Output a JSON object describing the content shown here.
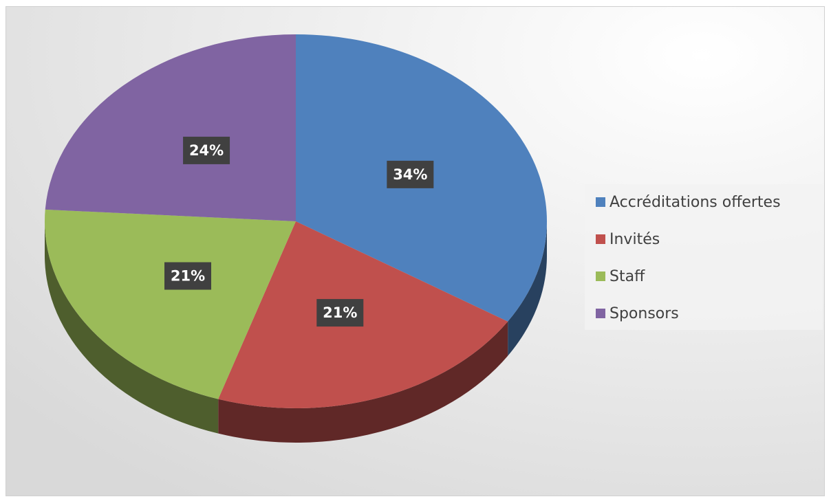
{
  "chart_data": {
    "type": "pie",
    "categories": [
      "Accréditations offertes",
      "Invités",
      "Staff",
      "Sponsors"
    ],
    "values": [
      34,
      21,
      21,
      24
    ],
    "value_labels": [
      "34%",
      "21%",
      "21%",
      "24%"
    ],
    "colors": [
      "#4f81bd",
      "#c0504d",
      "#9bbb59",
      "#8064a2"
    ],
    "legend": "right"
  }
}
